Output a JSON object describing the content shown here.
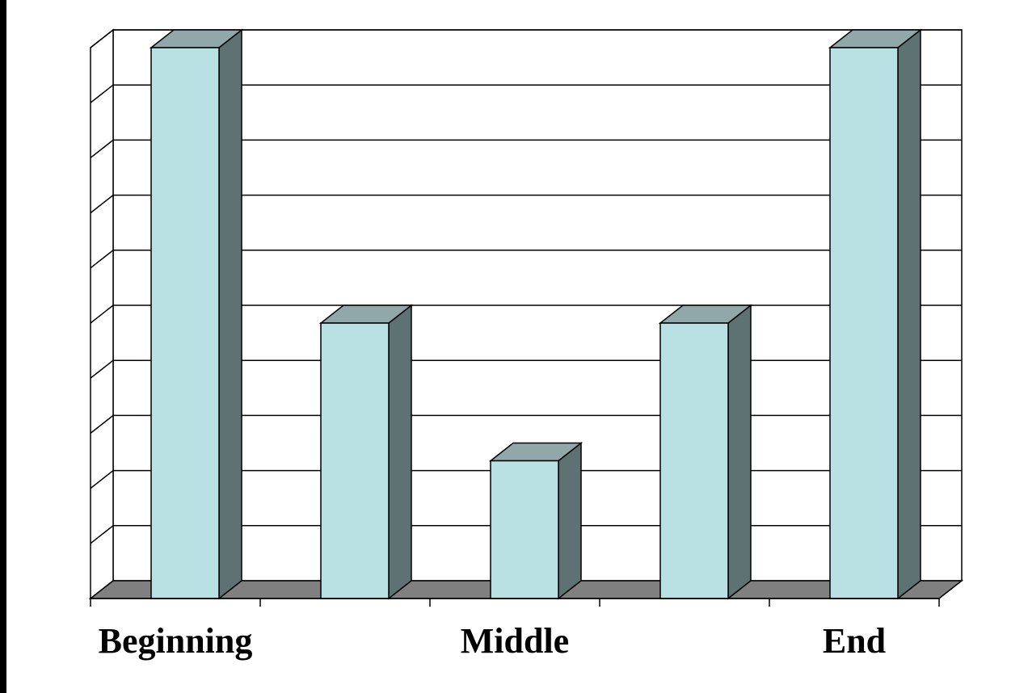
{
  "chart_data": {
    "type": "bar",
    "style": "3d-column",
    "categories": [
      "Beginning",
      "",
      "Middle",
      "",
      "End"
    ],
    "values": [
      10,
      5,
      2.5,
      5,
      10
    ],
    "ylim": [
      0,
      10
    ],
    "y_gridlines": 10,
    "grid": true,
    "legend": "none",
    "colors": {
      "bar_front": "#B9E0E3",
      "bar_side": "#5F7273",
      "bar_top": "#90A8AA",
      "floor": "#808080",
      "gridline": "#000000",
      "background": "#FFFFFF"
    }
  }
}
